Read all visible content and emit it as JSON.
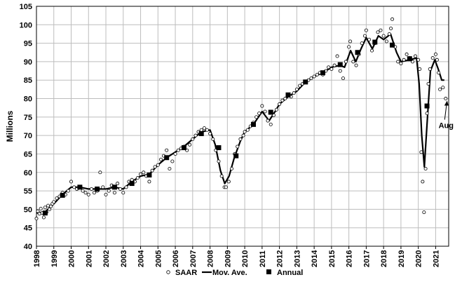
{
  "chart_data": {
    "type": "line",
    "ylabel": "Millions",
    "xlim": [
      1998,
      2021.75
    ],
    "ylim": [
      40,
      105
    ],
    "yticks": [
      40,
      45,
      50,
      55,
      60,
      65,
      70,
      75,
      80,
      85,
      90,
      95,
      100,
      105
    ],
    "xticks": [
      1998,
      1999,
      2000,
      2001,
      2002,
      2003,
      2004,
      2005,
      2006,
      2007,
      2008,
      2009,
      2010,
      2011,
      2012,
      2013,
      2014,
      2015,
      2016,
      2017,
      2018,
      2019,
      2020,
      2021
    ],
    "grid": true,
    "legend": {
      "placement": "bottom",
      "entries": [
        "SAAR",
        "Mov. Ave.",
        "Annual"
      ]
    },
    "annotation": {
      "text": "Aug",
      "x": 2021.6,
      "y": 80
    },
    "series": [
      {
        "name": "SAAR",
        "style": "hollow-circle",
        "points": [
          [
            1998.0,
            47.5
          ],
          [
            1998.08,
            49.5
          ],
          [
            1998.17,
            48.8
          ],
          [
            1998.25,
            50.2
          ],
          [
            1998.33,
            49.0
          ],
          [
            1998.42,
            47.8
          ],
          [
            1998.5,
            50.5
          ],
          [
            1998.58,
            49.2
          ],
          [
            1998.67,
            51.0
          ],
          [
            1998.75,
            50.0
          ],
          [
            1998.83,
            50.8
          ],
          [
            1998.92,
            51.5
          ],
          [
            1999.0,
            52.0
          ],
          [
            1999.17,
            53.0
          ],
          [
            1999.33,
            53.5
          ],
          [
            1999.5,
            54.5
          ],
          [
            1999.67,
            54.0
          ],
          [
            1999.83,
            55.0
          ],
          [
            2000.0,
            57.5
          ],
          [
            2000.17,
            56.0
          ],
          [
            2000.33,
            55.5
          ],
          [
            2000.5,
            56.0
          ],
          [
            2000.67,
            55.0
          ],
          [
            2000.83,
            54.5
          ],
          [
            2001.0,
            54.0
          ],
          [
            2001.17,
            55.5
          ],
          [
            2001.33,
            54.5
          ],
          [
            2001.5,
            55.0
          ],
          [
            2001.67,
            60.0
          ],
          [
            2001.83,
            56.0
          ],
          [
            2002.0,
            54.0
          ],
          [
            2002.17,
            55.0
          ],
          [
            2002.33,
            56.5
          ],
          [
            2002.5,
            54.5
          ],
          [
            2002.67,
            57.0
          ],
          [
            2002.83,
            55.5
          ],
          [
            2003.0,
            54.5
          ],
          [
            2003.17,
            56.0
          ],
          [
            2003.33,
            57.5
          ],
          [
            2003.5,
            58.0
          ],
          [
            2003.67,
            57.5
          ],
          [
            2003.83,
            58.5
          ],
          [
            2004.0,
            59.5
          ],
          [
            2004.17,
            60.0
          ],
          [
            2004.33,
            59.0
          ],
          [
            2004.5,
            57.5
          ],
          [
            2004.67,
            60.5
          ],
          [
            2004.83,
            61.5
          ],
          [
            2005.0,
            62.0
          ],
          [
            2005.17,
            63.5
          ],
          [
            2005.33,
            64.5
          ],
          [
            2005.5,
            66.0
          ],
          [
            2005.67,
            61.0
          ],
          [
            2005.83,
            63.0
          ],
          [
            2006.0,
            65.0
          ],
          [
            2006.17,
            66.0
          ],
          [
            2006.33,
            66.5
          ],
          [
            2006.5,
            67.0
          ],
          [
            2006.67,
            66.0
          ],
          [
            2006.83,
            67.5
          ],
          [
            2007.0,
            69.0
          ],
          [
            2007.17,
            70.0
          ],
          [
            2007.33,
            71.0
          ],
          [
            2007.5,
            71.5
          ],
          [
            2007.67,
            72.0
          ],
          [
            2007.83,
            71.5
          ],
          [
            2008.0,
            70.5
          ],
          [
            2008.17,
            69.0
          ],
          [
            2008.33,
            66.0
          ],
          [
            2008.5,
            63.0
          ],
          [
            2008.67,
            59.0
          ],
          [
            2008.83,
            56.0
          ],
          [
            2008.92,
            56.0
          ],
          [
            2009.08,
            57.5
          ],
          [
            2009.25,
            61.0
          ],
          [
            2009.42,
            65.0
          ],
          [
            2009.58,
            67.0
          ],
          [
            2009.75,
            69.0
          ],
          [
            2009.92,
            70.0
          ],
          [
            2010.0,
            71.0
          ],
          [
            2010.17,
            71.5
          ],
          [
            2010.33,
            72.5
          ],
          [
            2010.5,
            73.5
          ],
          [
            2010.67,
            75.0
          ],
          [
            2010.83,
            76.0
          ],
          [
            2011.0,
            78.0
          ],
          [
            2011.17,
            76.5
          ],
          [
            2011.33,
            74.0
          ],
          [
            2011.5,
            73.0
          ],
          [
            2011.67,
            75.5
          ],
          [
            2011.83,
            77.0
          ],
          [
            2012.0,
            78.5
          ],
          [
            2012.17,
            79.5
          ],
          [
            2012.33,
            80.0
          ],
          [
            2012.5,
            81.0
          ],
          [
            2012.67,
            80.5
          ],
          [
            2012.83,
            81.5
          ],
          [
            2013.0,
            82.5
          ],
          [
            2013.17,
            83.5
          ],
          [
            2013.33,
            84.0
          ],
          [
            2013.5,
            84.5
          ],
          [
            2013.67,
            85.0
          ],
          [
            2013.83,
            85.5
          ],
          [
            2014.0,
            86.0
          ],
          [
            2014.17,
            86.5
          ],
          [
            2014.33,
            87.0
          ],
          [
            2014.5,
            86.5
          ],
          [
            2014.67,
            87.5
          ],
          [
            2014.83,
            88.5
          ],
          [
            2015.0,
            88.0
          ],
          [
            2015.17,
            89.0
          ],
          [
            2015.33,
            91.5
          ],
          [
            2015.5,
            87.5
          ],
          [
            2015.67,
            85.5
          ],
          [
            2015.83,
            90.0
          ],
          [
            2016.0,
            94.0
          ],
          [
            2016.08,
            95.5
          ],
          [
            2016.25,
            90.0
          ],
          [
            2016.42,
            89.0
          ],
          [
            2016.58,
            92.0
          ],
          [
            2016.75,
            95.0
          ],
          [
            2016.92,
            97.0
          ],
          [
            2017.0,
            98.5
          ],
          [
            2017.17,
            96.0
          ],
          [
            2017.33,
            93.0
          ],
          [
            2017.5,
            95.0
          ],
          [
            2017.67,
            98.0
          ],
          [
            2017.83,
            98.5
          ],
          [
            2018.0,
            97.0
          ],
          [
            2018.17,
            95.5
          ],
          [
            2018.33,
            97.5
          ],
          [
            2018.42,
            99.0
          ],
          [
            2018.5,
            101.5
          ],
          [
            2018.67,
            94.0
          ],
          [
            2018.83,
            90.0
          ],
          [
            2019.0,
            89.5
          ],
          [
            2019.17,
            90.5
          ],
          [
            2019.33,
            92.0
          ],
          [
            2019.5,
            91.0
          ],
          [
            2019.67,
            90.0
          ],
          [
            2019.83,
            91.5
          ],
          [
            2020.0,
            90.5
          ],
          [
            2020.08,
            88.0
          ],
          [
            2020.17,
            65.5
          ],
          [
            2020.25,
            57.5
          ],
          [
            2020.33,
            49.2
          ],
          [
            2020.42,
            61.0
          ],
          [
            2020.5,
            76.0
          ],
          [
            2020.58,
            84.0
          ],
          [
            2020.67,
            88.0
          ],
          [
            2020.83,
            91.0
          ],
          [
            2021.0,
            92.0
          ],
          [
            2021.08,
            90.5
          ],
          [
            2021.17,
            87.0
          ],
          [
            2021.25,
            82.5
          ],
          [
            2021.42,
            83.0
          ],
          [
            2021.58,
            80.0
          ]
        ]
      },
      {
        "name": "Mov. Ave.",
        "style": "line",
        "points": [
          [
            1998.0,
            49.0
          ],
          [
            1998.5,
            49.3
          ],
          [
            1999.0,
            51.5
          ],
          [
            1999.5,
            54.0
          ],
          [
            2000.0,
            56.0
          ],
          [
            2000.5,
            56.0
          ],
          [
            2001.0,
            55.5
          ],
          [
            2001.5,
            55.5
          ],
          [
            2002.0,
            55.5
          ],
          [
            2002.5,
            56.0
          ],
          [
            2003.0,
            55.5
          ],
          [
            2003.5,
            57.5
          ],
          [
            2004.0,
            59.0
          ],
          [
            2004.5,
            59.5
          ],
          [
            2005.0,
            62.0
          ],
          [
            2005.5,
            64.0
          ],
          [
            2006.0,
            65.5
          ],
          [
            2006.5,
            67.0
          ],
          [
            2007.0,
            69.0
          ],
          [
            2007.5,
            71.0
          ],
          [
            2008.0,
            71.5
          ],
          [
            2008.3,
            67.5
          ],
          [
            2008.6,
            60.5
          ],
          [
            2008.85,
            57.0
          ],
          [
            2009.1,
            59.0
          ],
          [
            2009.4,
            64.0
          ],
          [
            2009.75,
            68.5
          ],
          [
            2010.0,
            71.0
          ],
          [
            2010.5,
            73.0
          ],
          [
            2011.0,
            76.5
          ],
          [
            2011.4,
            74.0
          ],
          [
            2011.75,
            76.5
          ],
          [
            2012.0,
            78.5
          ],
          [
            2012.5,
            80.5
          ],
          [
            2013.0,
            82.0
          ],
          [
            2013.5,
            84.5
          ],
          [
            2014.0,
            86.0
          ],
          [
            2014.5,
            87.0
          ],
          [
            2015.0,
            88.5
          ],
          [
            2015.5,
            89.0
          ],
          [
            2015.75,
            88.5
          ],
          [
            2016.1,
            93.0
          ],
          [
            2016.4,
            90.0
          ],
          [
            2016.7,
            93.5
          ],
          [
            2017.0,
            96.5
          ],
          [
            2017.35,
            93.5
          ],
          [
            2017.7,
            97.0
          ],
          [
            2018.0,
            96.0
          ],
          [
            2018.4,
            97.5
          ],
          [
            2018.75,
            92.5
          ],
          [
            2019.0,
            90.0
          ],
          [
            2019.5,
            90.5
          ],
          [
            2019.9,
            91.0
          ],
          [
            2020.05,
            84.0
          ],
          [
            2020.2,
            70.0
          ],
          [
            2020.35,
            61.5
          ],
          [
            2020.5,
            73.0
          ],
          [
            2020.7,
            87.5
          ],
          [
            2020.95,
            90.5
          ],
          [
            2021.15,
            88.0
          ],
          [
            2021.35,
            85.0
          ],
          [
            2021.5,
            85.0
          ]
        ]
      },
      {
        "name": "Annual",
        "style": "filled-square",
        "points": [
          [
            1998.5,
            49.0
          ],
          [
            1999.5,
            53.8
          ],
          [
            2000.5,
            56.0
          ],
          [
            2001.5,
            55.5
          ],
          [
            2002.5,
            56.0
          ],
          [
            2003.5,
            57.0
          ],
          [
            2004.5,
            59.3
          ],
          [
            2005.5,
            64.0
          ],
          [
            2006.5,
            66.7
          ],
          [
            2007.5,
            70.5
          ],
          [
            2008.5,
            66.7
          ],
          [
            2009.5,
            64.5
          ],
          [
            2010.5,
            73.0
          ],
          [
            2011.5,
            76.3
          ],
          [
            2012.5,
            81.0
          ],
          [
            2013.5,
            84.5
          ],
          [
            2014.5,
            87.0
          ],
          [
            2015.5,
            89.2
          ],
          [
            2016.5,
            92.5
          ],
          [
            2017.5,
            95.3
          ],
          [
            2018.5,
            94.5
          ],
          [
            2019.5,
            90.8
          ],
          [
            2020.5,
            78.0
          ]
        ]
      }
    ]
  }
}
